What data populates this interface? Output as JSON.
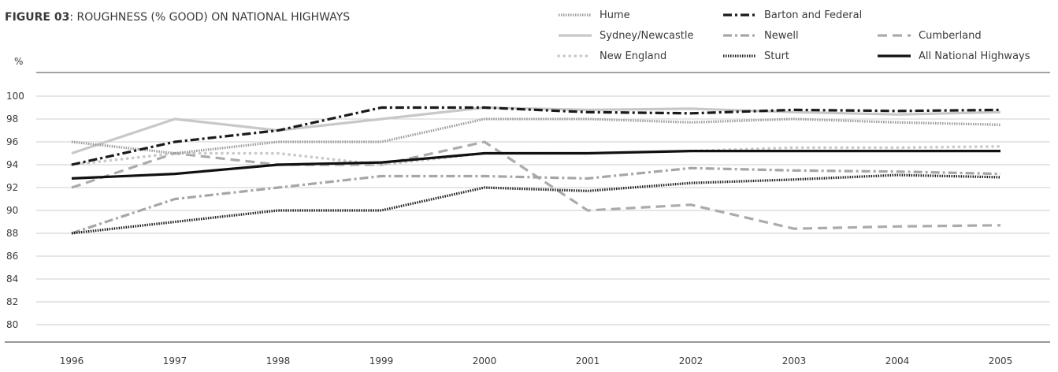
{
  "chart_data": {
    "type": "line",
    "title_prefix": "FIGURE 03",
    "title": ": ROUGHNESS (% GOOD) ON NATIONAL HIGHWAYS",
    "ylabel": "%",
    "xlabel": "",
    "ylim": [
      80,
      100
    ],
    "y_ticks": [
      100,
      98,
      96,
      94,
      92,
      90,
      88,
      86,
      84,
      82,
      80
    ],
    "categories": [
      "1996",
      "1997",
      "1998",
      "1999",
      "2000",
      "2001",
      "2002",
      "2003",
      "2004",
      "2005"
    ],
    "grid": true,
    "legend_position": "top-right",
    "series": [
      {
        "name": "Hume",
        "color": "#9a9a9a",
        "style": "dotted-dense",
        "values": [
          96,
          95,
          96,
          96,
          98,
          98,
          97.7,
          98,
          97.7,
          97.5
        ]
      },
      {
        "name": "Barton and Federal",
        "color": "#1a1a1a",
        "style": "dash-dot",
        "values": [
          94,
          96,
          97,
          99,
          99,
          98.6,
          98.5,
          98.8,
          98.7,
          98.8
        ]
      },
      {
        "name": "Sydney/Newcastle",
        "color": "#c8c8c8",
        "style": "solid",
        "values": [
          95,
          98,
          97,
          98,
          99,
          98.8,
          98.9,
          98.6,
          98.4,
          98.6
        ]
      },
      {
        "name": "Newell",
        "color": "#a6a6a6",
        "style": "dash-dot",
        "values": [
          88,
          91,
          92,
          93,
          93,
          92.8,
          93.7,
          93.5,
          93.4,
          93.2
        ]
      },
      {
        "name": "Cumberland",
        "color": "#ababab",
        "style": "dashed",
        "values": [
          92,
          95,
          94,
          94,
          96,
          90,
          90.5,
          88.4,
          88.6,
          88.7
        ]
      },
      {
        "name": "New England",
        "color": "#c8c8c8",
        "style": "dotted-round",
        "values": [
          94,
          95,
          95,
          94,
          95,
          95,
          95.2,
          95.5,
          95.5,
          95.6
        ]
      },
      {
        "name": "Sturt",
        "color": "#1a1a1a",
        "style": "dotted-dense",
        "values": [
          88,
          89,
          90,
          90,
          92,
          91.7,
          92.4,
          92.7,
          93.1,
          92.9
        ]
      },
      {
        "name": "All National Highways",
        "color": "#111111",
        "style": "solid-bold",
        "values": [
          92.8,
          93.2,
          94,
          94.2,
          95,
          95,
          95.2,
          95.2,
          95.2,
          95.2
        ]
      }
    ]
  }
}
